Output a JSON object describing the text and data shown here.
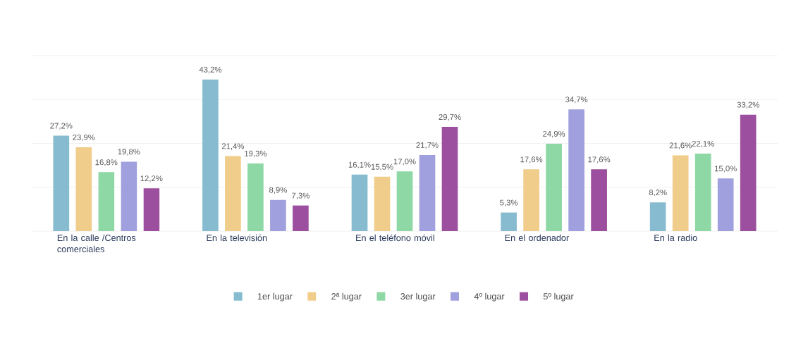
{
  "chart_data": {
    "type": "bar",
    "categories": [
      "En la calle /Centros comerciales",
      "En la televisión",
      "En el teléfono móvil",
      "En el ordenador",
      "En la radio"
    ],
    "series": [
      {
        "name": "1er lugar",
        "color": "#86bbd0",
        "values": [
          27.2,
          43.2,
          16.1,
          5.3,
          8.2
        ],
        "value_labels": [
          "27,2%",
          "43,2%",
          "16,1%",
          "5,3%",
          "8,2%"
        ]
      },
      {
        "name": "2ª lugar",
        "color": "#f0cd8a",
        "values": [
          23.9,
          21.4,
          15.5,
          17.6,
          21.6
        ],
        "value_labels": [
          "23,9%",
          "21,4%",
          "15,5%",
          "17,6%",
          "21,6%"
        ]
      },
      {
        "name": "3er lugar",
        "color": "#8dd8a5",
        "values": [
          16.8,
          19.3,
          17.0,
          24.9,
          22.1
        ],
        "value_labels": [
          "16,8%",
          "19,3%",
          "17,0%",
          "24,9%",
          "22,1%"
        ]
      },
      {
        "name": "4º lugar",
        "color": "#a0a0de",
        "values": [
          19.8,
          8.9,
          21.7,
          34.7,
          15.0
        ],
        "value_labels": [
          "19,8%",
          "8,9%",
          "21,7%",
          "34,7%",
          "15,0%"
        ]
      },
      {
        "name": "5º lugar",
        "color": "#9c4f9e",
        "values": [
          12.2,
          7.3,
          29.7,
          17.6,
          33.2
        ],
        "value_labels": [
          "12,2%",
          "7,3%",
          "29,7%",
          "17,6%",
          "33,2%"
        ]
      }
    ],
    "ylim": [
      0,
      50
    ],
    "yticks": [
      {
        "value": 0,
        "label": null
      },
      {
        "value": 12.5,
        "label": null
      },
      {
        "value": 25,
        "label": null
      },
      {
        "value": 37.5,
        "label": null
      },
      {
        "value": 50,
        "label": null
      }
    ],
    "grid": "y",
    "legend": "bottom",
    "tick_labels": "x"
  }
}
